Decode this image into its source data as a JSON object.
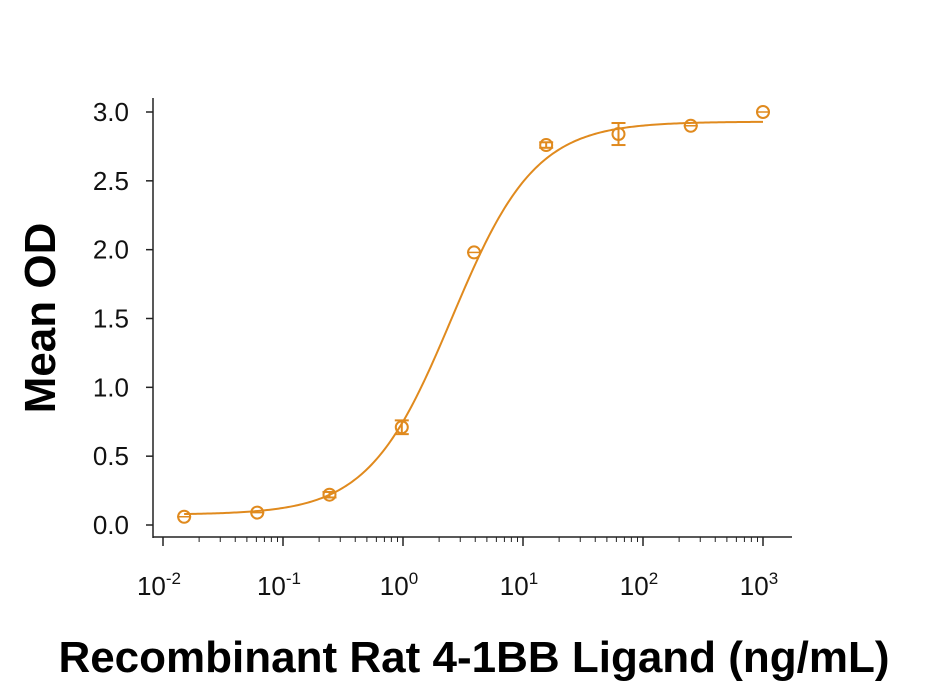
{
  "chart_data": {
    "type": "scatter",
    "title": "",
    "xlabel": "Recombinant Rat 4-1BB Ligand (ng/mL)",
    "ylabel": "Mean OD",
    "x_scale": "log",
    "xlim": [
      0.01,
      1000
    ],
    "ylim": [
      0,
      3.0
    ],
    "grid": false,
    "color": "#E08A1E",
    "y_ticks": [
      {
        "value": 0.0,
        "label": "0.0"
      },
      {
        "value": 0.5,
        "label": "0.5"
      },
      {
        "value": 1.0,
        "label": "1.0"
      },
      {
        "value": 1.5,
        "label": "1.5"
      },
      {
        "value": 2.0,
        "label": "2.0"
      },
      {
        "value": 2.5,
        "label": "2.5"
      },
      {
        "value": 3.0,
        "label": "3.0"
      }
    ],
    "x_ticks": [
      {
        "value": 0.01,
        "base": "10",
        "exp": "-2"
      },
      {
        "value": 0.1,
        "base": "10",
        "exp": "-1"
      },
      {
        "value": 1,
        "base": "10",
        "exp": "0"
      },
      {
        "value": 10,
        "base": "10",
        "exp": "1"
      },
      {
        "value": 100,
        "base": "10",
        "exp": "2"
      },
      {
        "value": 1000,
        "base": "10",
        "exp": "3"
      }
    ],
    "series": [
      {
        "points": [
          {
            "x": 0.015,
            "y": 0.06,
            "err": 0.0
          },
          {
            "x": 0.061,
            "y": 0.09,
            "err": 0.0
          },
          {
            "x": 0.244,
            "y": 0.22,
            "err": 0.02
          },
          {
            "x": 0.977,
            "y": 0.71,
            "err": 0.05
          },
          {
            "x": 3.91,
            "y": 1.98,
            "err": 0.0
          },
          {
            "x": 15.6,
            "y": 2.76,
            "err": 0.02
          },
          {
            "x": 62.5,
            "y": 2.84,
            "err": 0.08
          },
          {
            "x": 250,
            "y": 2.9,
            "err": 0.0
          },
          {
            "x": 1000,
            "y": 3.0,
            "err": 0.0
          }
        ],
        "fit": {
          "bottom": 0.075,
          "top": 2.93,
          "ec50": 2.55,
          "hill": 1.25
        }
      }
    ]
  }
}
